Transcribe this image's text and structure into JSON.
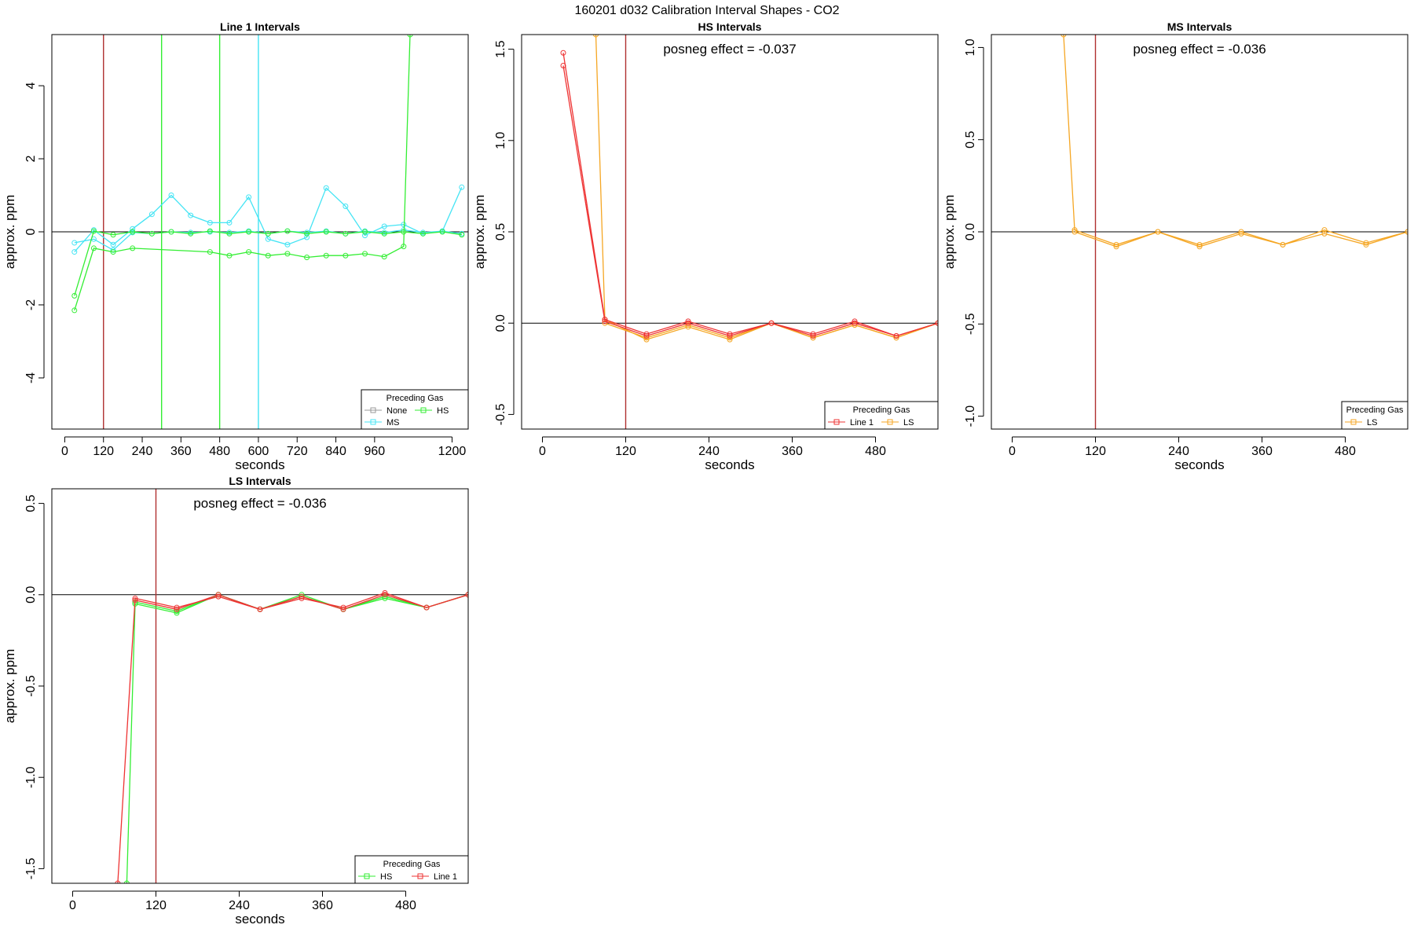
{
  "figure_title": "160201  d032   Calibration Interval Shapes - CO2",
  "chart_data": [
    {
      "id": "line1",
      "type": "line",
      "title": "Line 1 Intervals",
      "xlabel": "seconds",
      "ylabel": "approx. ppm",
      "xlim": [
        -40,
        1250
      ],
      "ylim": [
        -5.4,
        5.4
      ],
      "xticks": [
        0,
        120,
        240,
        360,
        480,
        600,
        720,
        840,
        960,
        1200
      ],
      "yticks": [
        -4,
        -2,
        0,
        2,
        4
      ],
      "annotation": "",
      "legend": {
        "title": "Preceding Gas",
        "position": "bottom-right",
        "entries": [
          {
            "label": "None",
            "color": "#999999"
          },
          {
            "label": "HS",
            "color": "#33ee33"
          },
          {
            "label": "MS",
            "color": "#44e4f4"
          }
        ]
      },
      "vlines": [
        {
          "x": 120,
          "color": "#b03030"
        },
        {
          "x": 300,
          "color": "#33ee33"
        },
        {
          "x": 480,
          "color": "#33ee33"
        },
        {
          "x": 600,
          "color": "#44e4f4"
        }
      ],
      "series": [
        {
          "name": "MS",
          "color": "#44e4f4",
          "x": [
            30,
            90,
            150,
            210,
            270,
            330,
            390,
            450,
            510,
            570,
            630,
            690,
            750,
            810,
            870,
            930,
            990,
            1050,
            1110,
            1170,
            1230
          ],
          "y": [
            -0.55,
            0.05,
            -0.35,
            0.08,
            0.48,
            1.0,
            0.45,
            0.25,
            0.25,
            0.95,
            -0.2,
            -0.35,
            -0.15,
            1.2,
            0.7,
            -0.1,
            0.15,
            0.2,
            -0.05,
            0.02,
            1.22
          ]
        },
        {
          "name": "MS",
          "color": "#44e4f4",
          "x": [
            30,
            90,
            150,
            210,
            270,
            330,
            390,
            450,
            510,
            570,
            630,
            690,
            750,
            810,
            870,
            930,
            990,
            1050,
            1110,
            1170,
            1230
          ],
          "y": [
            -0.3,
            -0.2,
            -0.5,
            -0.02,
            -0.05,
            0.0,
            -0.02,
            0.0,
            -0.02,
            0.02,
            -0.05,
            0.02,
            -0.02,
            0.02,
            -0.05,
            0.02,
            -0.02,
            0.05,
            -0.02,
            0.02,
            -0.05
          ]
        },
        {
          "name": "HS",
          "color": "#33ee33",
          "x": [
            30,
            90,
            150,
            210,
            450,
            510,
            570,
            630,
            690,
            750,
            810,
            870,
            930,
            990,
            1050,
            1070
          ],
          "y": [
            -2.15,
            -0.45,
            -0.55,
            -0.45,
            -0.55,
            -0.65,
            -0.55,
            -0.65,
            -0.6,
            -0.7,
            -0.65,
            -0.65,
            -0.6,
            -0.68,
            -0.4,
            5.4
          ]
        },
        {
          "name": "HS",
          "color": "#33ee33",
          "x": [
            30,
            90,
            150,
            210,
            270,
            330,
            390,
            450,
            510,
            570,
            630,
            690,
            750,
            810,
            870,
            930,
            990,
            1050,
            1110,
            1170,
            1230
          ],
          "y": [
            -1.75,
            0.02,
            -0.08,
            0.0,
            -0.05,
            0.0,
            -0.05,
            0.02,
            -0.05,
            0.0,
            -0.05,
            0.02,
            -0.05,
            0.0,
            -0.05,
            0.0,
            -0.05,
            0.0,
            -0.05,
            0.0,
            -0.08
          ]
        }
      ]
    },
    {
      "id": "hs",
      "type": "line",
      "title": "HS Intervals",
      "xlabel": "seconds",
      "ylabel": "approx. ppm",
      "xlim": [
        -30,
        570
      ],
      "ylim": [
        -0.58,
        1.58
      ],
      "xticks": [
        0,
        120,
        240,
        360,
        480
      ],
      "yticks": [
        -0.5,
        0.0,
        0.5,
        1.0,
        1.5
      ],
      "ytick_labels": [
        "-0.5",
        "0.0",
        "0.5",
        "1.0",
        "1.5"
      ],
      "annotation": "posneg effect = -0.037",
      "legend": {
        "title": "Preceding Gas",
        "position": "bottom-right",
        "entries": [
          {
            "label": "Line 1",
            "color": "#ee3333"
          },
          {
            "label": "LS",
            "color": "#f5a623"
          }
        ]
      },
      "vlines": [
        {
          "x": 120,
          "color": "#b03030"
        }
      ],
      "series": [
        {
          "name": "LS",
          "color": "#f5a623",
          "x": [
            77,
            90,
            150,
            210,
            270,
            330,
            390,
            450,
            510,
            570
          ],
          "y": [
            1.58,
            0.02,
            -0.09,
            -0.02,
            -0.09,
            0.0,
            -0.08,
            -0.01,
            -0.08,
            0.0
          ]
        },
        {
          "name": "LS",
          "color": "#f5a623",
          "x": [
            90,
            150,
            210,
            270,
            330,
            390,
            450,
            510,
            570
          ],
          "y": [
            0.0,
            -0.08,
            -0.01,
            -0.08,
            0.0,
            -0.08,
            -0.01,
            -0.08,
            0.0
          ]
        },
        {
          "name": "Line 1",
          "color": "#ee3333",
          "x": [
            30,
            90,
            150,
            210,
            270,
            330,
            390,
            450,
            510,
            570
          ],
          "y": [
            1.48,
            0.02,
            -0.06,
            0.01,
            -0.06,
            0.0,
            -0.06,
            0.01,
            -0.07,
            0.0
          ]
        },
        {
          "name": "Line 1",
          "color": "#ee3333",
          "x": [
            30,
            90,
            150,
            210,
            270,
            330,
            390,
            450,
            510,
            570
          ],
          "y": [
            1.41,
            0.01,
            -0.07,
            0.0,
            -0.07,
            0.0,
            -0.07,
            0.0,
            -0.07,
            0.0
          ]
        }
      ]
    },
    {
      "id": "ms",
      "type": "line",
      "title": "MS Intervals",
      "xlabel": "seconds",
      "ylabel": "approx. ppm",
      "xlim": [
        -30,
        570
      ],
      "ylim": [
        -1.07,
        1.07
      ],
      "xticks": [
        0,
        120,
        240,
        360,
        480
      ],
      "yticks": [
        -1.0,
        -0.5,
        0.0,
        0.5,
        1.0
      ],
      "ytick_labels": [
        "-1.0",
        "-0.5",
        "0.0",
        "0.5",
        "1.0"
      ],
      "annotation": "posneg effect = -0.036",
      "legend": {
        "title": "Preceding Gas",
        "position": "bottom-right",
        "entries": [
          {
            "label": "LS",
            "color": "#f5a623"
          }
        ]
      },
      "vlines": [
        {
          "x": 120,
          "color": "#b03030"
        }
      ],
      "series": [
        {
          "name": "LS",
          "color": "#f5a623",
          "x": [
            74,
            90,
            150,
            210,
            270,
            330,
            390,
            450,
            510,
            570
          ],
          "y": [
            1.07,
            0.01,
            -0.07,
            0.0,
            -0.07,
            0.0,
            -0.07,
            0.01,
            -0.06,
            0.0
          ]
        },
        {
          "name": "LS",
          "color": "#f5a623",
          "x": [
            90,
            150,
            210,
            270,
            330,
            390,
            450,
            510,
            570
          ],
          "y": [
            0.0,
            -0.08,
            0.0,
            -0.08,
            -0.01,
            -0.07,
            -0.01,
            -0.07,
            0.0
          ]
        }
      ]
    },
    {
      "id": "ls",
      "type": "line",
      "title": "LS Intervals",
      "xlabel": "seconds",
      "ylabel": "approx. ppm",
      "xlim": [
        -30,
        570
      ],
      "ylim": [
        -1.58,
        0.58
      ],
      "xticks": [
        0,
        120,
        240,
        360,
        480
      ],
      "yticks": [
        -1.5,
        -1.0,
        -0.5,
        0.0,
        0.5
      ],
      "ytick_labels": [
        "-1.5",
        "-1.0",
        "-0.5",
        "0.0",
        "0.5"
      ],
      "annotation": "posneg effect = -0.036",
      "legend": {
        "title": "Preceding Gas",
        "position": "bottom-right",
        "entries": [
          {
            "label": "HS",
            "color": "#33ee33"
          },
          {
            "label": "Line 1",
            "color": "#ee3333"
          }
        ]
      },
      "vlines": [
        {
          "x": 120,
          "color": "#b03030"
        }
      ],
      "series": [
        {
          "name": "HS",
          "color": "#33ee33",
          "x": [
            78,
            90,
            150,
            210,
            270,
            330,
            390,
            450,
            510,
            570
          ],
          "y": [
            -1.58,
            -0.05,
            -0.1,
            0.0,
            -0.08,
            0.0,
            -0.08,
            -0.02,
            -0.07,
            0.0
          ]
        },
        {
          "name": "HS",
          "color": "#33ee33",
          "x": [
            90,
            150,
            210,
            270,
            330,
            390,
            450,
            510,
            570
          ],
          "y": [
            -0.04,
            -0.09,
            0.0,
            -0.08,
            -0.01,
            -0.08,
            -0.01,
            -0.07,
            0.0
          ]
        },
        {
          "name": "Line 1",
          "color": "#ee3333",
          "x": [
            65,
            90,
            150,
            210,
            270,
            330,
            390,
            450,
            510,
            570
          ],
          "y": [
            -1.58,
            -0.02,
            -0.07,
            -0.01,
            -0.08,
            -0.02,
            -0.07,
            0.01,
            -0.07,
            0.0
          ]
        },
        {
          "name": "Line 1",
          "color": "#ee3333",
          "x": [
            90,
            150,
            210,
            270,
            330,
            390,
            450,
            510,
            570
          ],
          "y": [
            -0.03,
            -0.08,
            0.0,
            -0.08,
            -0.01,
            -0.08,
            0.0,
            -0.07,
            0.0
          ]
        }
      ]
    }
  ]
}
